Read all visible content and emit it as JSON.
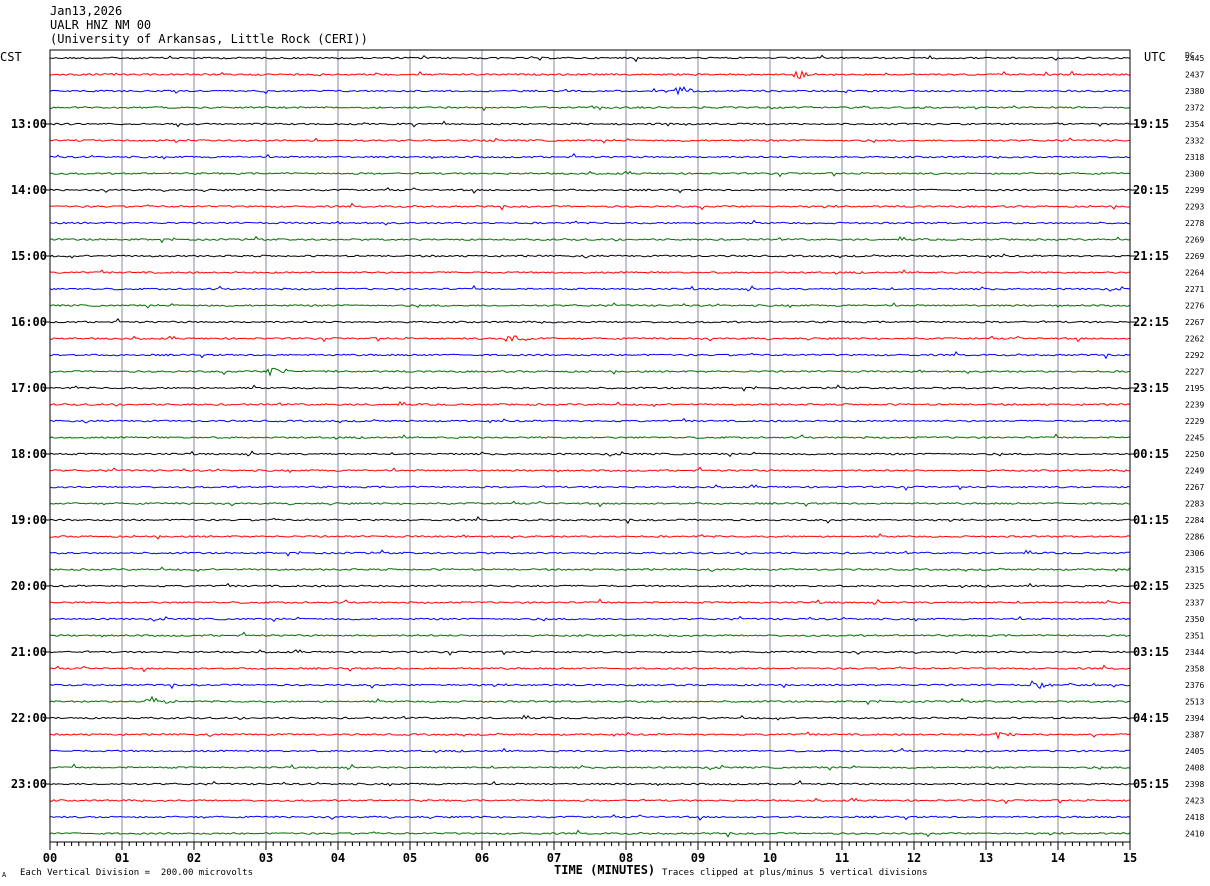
{
  "header": {
    "date": "Jan13,2026",
    "station": "UALR HNZ NM 00",
    "institution": "(University of Arkansas, Little Rock (CERI))"
  },
  "left_timezone": "CST",
  "right_timezone": "UTC",
  "dc_label": "DC",
  "footer": {
    "scale_note": "Each Vertical Division =  200.00 microvolts",
    "clip_note": "Traces clipped at plus/minus 5 vertical divisions",
    "corner_mark": "A"
  },
  "chart_data": {
    "type": "line",
    "title": "",
    "xlabel": "TIME (MINUTES)",
    "ylabel": "",
    "xlim": [
      0,
      15
    ],
    "x_ticks": [
      "00",
      "01",
      "02",
      "03",
      "04",
      "05",
      "06",
      "07",
      "08",
      "09",
      "10",
      "11",
      "12",
      "13",
      "14",
      "15"
    ],
    "grid": true,
    "trace_colors": [
      "#000000",
      "#ff0000",
      "#0000ff",
      "#007000"
    ],
    "left_hour_labels": [
      "13:00",
      "14:00",
      "15:00",
      "16:00",
      "17:00",
      "18:00",
      "19:00",
      "20:00",
      "21:00",
      "22:00",
      "23:00"
    ],
    "right_hour_labels": [
      "19:15",
      "20:15",
      "21:15",
      "22:15",
      "23:15",
      "00:15",
      "01:15",
      "02:15",
      "03:15",
      "04:15",
      "05:15"
    ],
    "dc_offsets": [
      2445,
      2437,
      2380,
      2372,
      2354,
      2332,
      2318,
      2300,
      2299,
      2293,
      2278,
      2269,
      2269,
      2264,
      2271,
      2276,
      2267,
      2262,
      2292,
      2227,
      2195,
      2239,
      2229,
      2245,
      2250,
      2249,
      2267,
      2283,
      2284,
      2286,
      2306,
      2315,
      2325,
      2337,
      2350,
      2351,
      2344,
      2358,
      2376,
      2513,
      2394,
      2387,
      2405,
      2408,
      2398,
      2423,
      2418,
      2410
    ],
    "events": [
      {
        "trace": 1,
        "minute": 10.4,
        "label": ""
      },
      {
        "trace": 2,
        "minute": 8.75,
        "label": ""
      },
      {
        "trace": 17,
        "minute": 6.4,
        "label": ""
      },
      {
        "trace": 19,
        "minute": 3.1,
        "label": ""
      },
      {
        "trace": 38,
        "minute": 13.7,
        "label": ""
      },
      {
        "trace": 39,
        "minute": 1.4,
        "label": ""
      },
      {
        "trace": 41,
        "minute": 13.2,
        "label": ""
      }
    ]
  }
}
